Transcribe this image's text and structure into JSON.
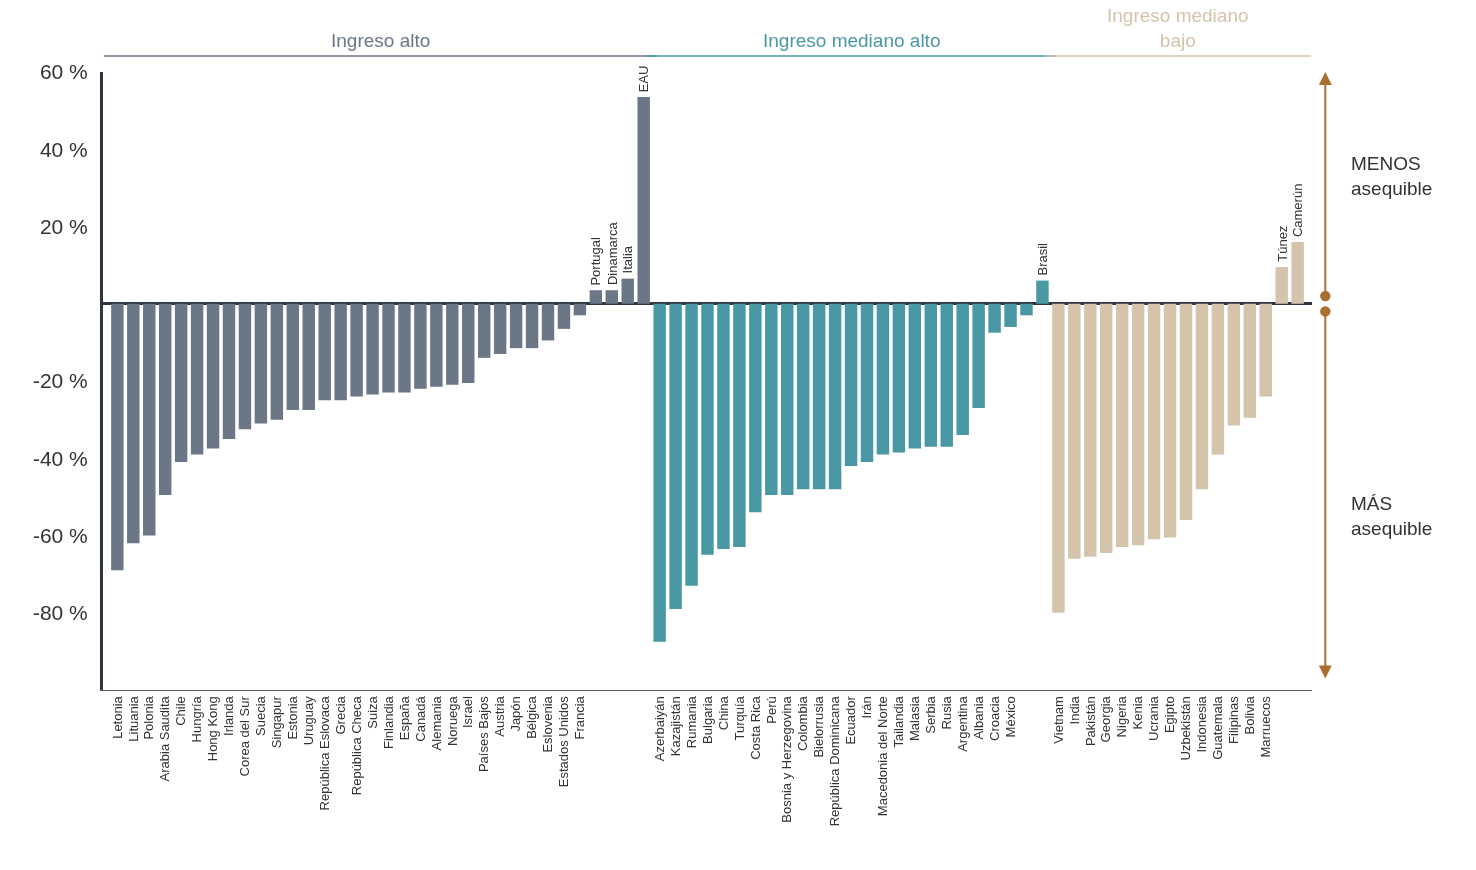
{
  "chart_data": {
    "type": "bar",
    "categories": [
      "Letonia",
      "Lituania",
      "Polonia",
      "Arabia Saudita",
      "Chile",
      "Hungría",
      "Hong Kong",
      "Irlanda",
      "Corea del Sur",
      "Suecia",
      "Singapur",
      "Estonia",
      "Uruguay",
      "República Eslovaca",
      "Grecia",
      "República Checa",
      "Suiza",
      "Finlandia",
      "España",
      "Canadá",
      "Alemania",
      "Noruega",
      "Israel",
      "Países Bajos",
      "Austria",
      "Japón",
      "Bélgica",
      "Eslovenia",
      "Estados Unidos",
      "Francia",
      "Portugal",
      "Dinamarca",
      "Italia",
      "EAU",
      "Azerbaiyán",
      "Kazajistán",
      "Rumania",
      "Bulgaria",
      "China",
      "Turquía",
      "Costa Rica",
      "Perú",
      "Bosnia y Herzegovina",
      "Colombia",
      "Bielorrusia",
      "República Dominicana",
      "Ecuador",
      "Irán",
      "Macedonia del Norte",
      "Tailandia",
      "Malasia",
      "Serbia",
      "Rusia",
      "Argentina",
      "Albania",
      "Croacia",
      "México",
      null,
      "Brasil",
      "Vietnam",
      "India",
      "Pakistán",
      "Georgia",
      "Nigeria",
      "Kenia",
      "Ucrania",
      "Egipto",
      "Uzbekistán",
      "Indonesia",
      "Guatemala",
      "Filipinas",
      "Bolivia",
      "Marruecos",
      "Túnez",
      "Camerún"
    ],
    "series": [
      {
        "name": "Ingreso alto",
        "color": "#6b7687",
        "values": [
          -69,
          -62,
          -60,
          -49.5,
          -41,
          -39,
          -37.5,
          -35,
          -32.5,
          -31,
          -30,
          -27.5,
          -27.5,
          -25,
          -25,
          -24,
          -23.5,
          -23,
          -23,
          -22,
          -21.5,
          -21,
          -20.5,
          -14,
          -13,
          -11.5,
          -11.5,
          -9.5,
          -6.5,
          -3,
          3.5,
          3.5,
          6.5,
          53.5,
          null,
          null,
          null,
          null,
          null,
          null,
          null,
          null,
          null,
          null,
          null,
          null,
          null,
          null,
          null,
          null,
          null,
          null,
          null,
          null,
          null,
          null,
          null,
          null,
          null,
          null,
          null,
          null,
          null,
          null,
          null,
          null,
          null,
          null,
          null,
          null,
          null,
          null,
          null,
          null,
          null
        ]
      },
      {
        "name": "Ingreso mediano alto",
        "color": "#4a98a4",
        "values": [
          null,
          null,
          null,
          null,
          null,
          null,
          null,
          null,
          null,
          null,
          null,
          null,
          null,
          null,
          null,
          null,
          null,
          null,
          null,
          null,
          null,
          null,
          null,
          null,
          null,
          null,
          null,
          null,
          null,
          null,
          null,
          null,
          null,
          null,
          -87.5,
          -79,
          -73,
          -65,
          -63.5,
          -63,
          -54,
          -49.5,
          -49.5,
          -48,
          -48,
          -48,
          -42,
          -41,
          -39,
          -38.5,
          -37.5,
          -37,
          -37,
          -34,
          -27,
          -7.5,
          -6,
          -3,
          6,
          null,
          null,
          null,
          null,
          null,
          null,
          null,
          null,
          null,
          null,
          null,
          null,
          null,
          null,
          null,
          null
        ]
      },
      {
        "name": "Ingreso mediano bajo",
        "color": "#d3c4ab",
        "values": [
          null,
          null,
          null,
          null,
          null,
          null,
          null,
          null,
          null,
          null,
          null,
          null,
          null,
          null,
          null,
          null,
          null,
          null,
          null,
          null,
          null,
          null,
          null,
          null,
          null,
          null,
          null,
          null,
          null,
          null,
          null,
          null,
          null,
          null,
          null,
          null,
          null,
          null,
          null,
          null,
          null,
          null,
          null,
          null,
          null,
          null,
          null,
          null,
          null,
          null,
          null,
          null,
          null,
          null,
          null,
          null,
          null,
          null,
          null,
          -80,
          -66,
          -65.5,
          -64.5,
          -63,
          -62.5,
          -61,
          -60.5,
          -56,
          -48,
          -39,
          -31.5,
          -29.5,
          -24,
          9.5,
          16
        ]
      }
    ],
    "ylim": [
      -100,
      60
    ],
    "yticks": [
      {
        "value": 60,
        "label": "60 %"
      },
      {
        "value": 40,
        "label": "40 %"
      },
      {
        "value": 20,
        "label": "20 %"
      },
      {
        "value": -20,
        "label": "-20 %"
      },
      {
        "value": -40,
        "label": "-40 %"
      },
      {
        "value": -60,
        "label": "-60 %"
      },
      {
        "value": -80,
        "label": "-80 %"
      }
    ],
    "annotations": [
      "MENOS asequible",
      "MÁS asequible"
    ],
    "legend": false
  }
}
